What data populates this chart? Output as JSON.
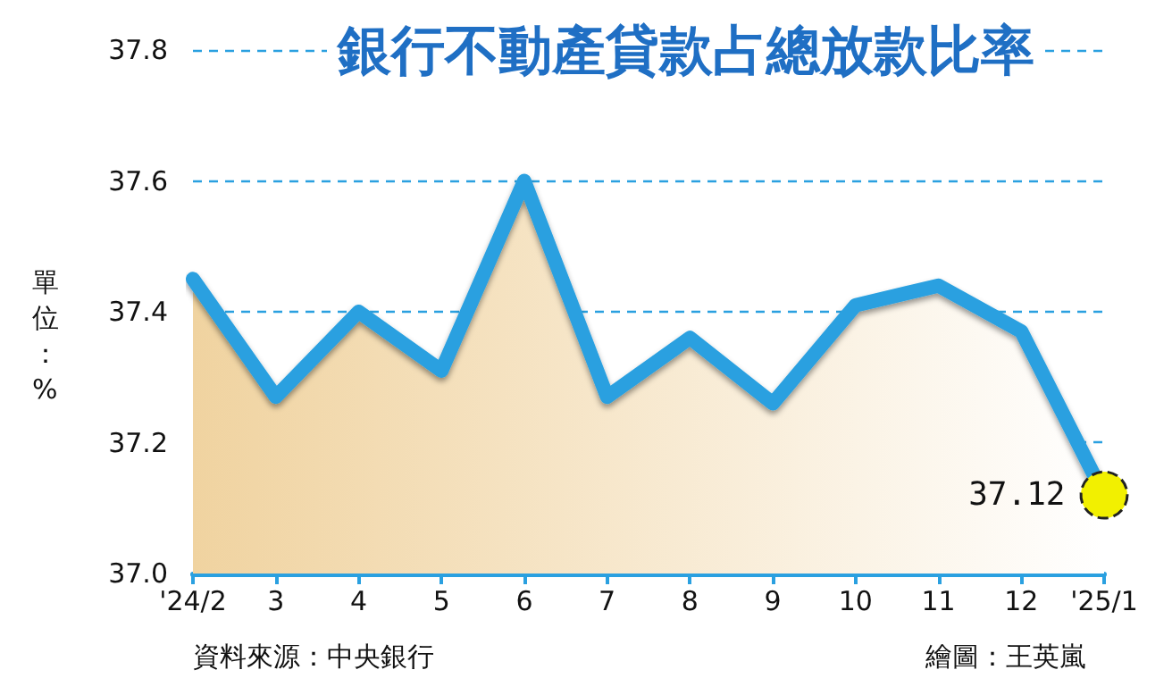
{
  "chart_data": {
    "type": "area",
    "title": "銀行不動產貸款占總放款比率",
    "ylabel": "單位：%",
    "categories": [
      "'24/2",
      "3",
      "4",
      "5",
      "6",
      "7",
      "8",
      "9",
      "10",
      "11",
      "12",
      "'25/1"
    ],
    "series": [
      {
        "color": "#2aa0e0",
        "values": [
          37.45,
          37.27,
          37.4,
          37.31,
          37.6,
          37.27,
          37.36,
          37.26,
          37.41,
          37.44,
          37.37,
          37.12
        ],
        "value_labels": [
          null,
          null,
          null,
          null,
          null,
          null,
          null,
          null,
          null,
          null,
          null,
          "37.12"
        ]
      }
    ],
    "ylim": [
      37.0,
      37.8
    ],
    "yticks": [
      {
        "value": 37.0,
        "label": "37.0"
      },
      37.2,
      37.4,
      37.6,
      37.8
    ],
    "grid": "y",
    "annotations": [
      "資料來源：中央銀行",
      "繪圖：王英嵐"
    ]
  }
}
